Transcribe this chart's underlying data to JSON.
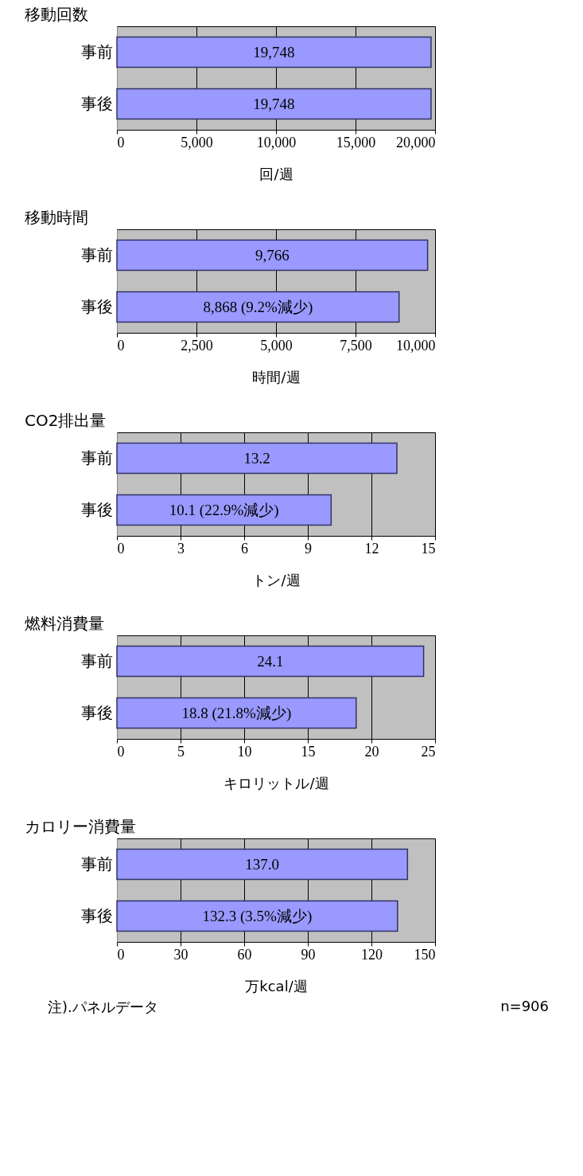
{
  "chart_data": [
    {
      "type": "bar",
      "orientation": "horizontal",
      "title": "移動回数",
      "categories": [
        "事前",
        "事後"
      ],
      "values": [
        19748,
        19748
      ],
      "value_labels": [
        "19,748",
        "19,748"
      ],
      "color": "#9999ff",
      "xlim": [
        0,
        20000
      ],
      "xticks": [
        0,
        {
          "value": 5000,
          "label": "5,000"
        },
        {
          "value": 10000,
          "label": "10,000"
        },
        {
          "value": 15000,
          "label": "15,000"
        },
        {
          "value": 20000,
          "label": "20,000"
        }
      ],
      "xlabel": "回/週",
      "grid": "x"
    },
    {
      "type": "bar",
      "orientation": "horizontal",
      "title": "移動時間",
      "categories": [
        "事前",
        "事後"
      ],
      "values": [
        9766,
        8868
      ],
      "value_labels": [
        "9,766",
        "8,868 (9.2%減少)"
      ],
      "color": "#9999ff",
      "xlim": [
        0,
        10000
      ],
      "xticks": [
        0,
        {
          "value": 2500,
          "label": "2,500"
        },
        {
          "value": 5000,
          "label": "5,000"
        },
        {
          "value": 7500,
          "label": "7,500"
        },
        {
          "value": 10000,
          "label": "10,000"
        }
      ],
      "xlabel": "時間/週",
      "grid": "x"
    },
    {
      "type": "bar",
      "orientation": "horizontal",
      "title": "CO2排出量",
      "categories": [
        "事前",
        "事後"
      ],
      "values": [
        13.2,
        10.1
      ],
      "value_labels": [
        "13.2",
        "10.1 (22.9%減少)"
      ],
      "color": "#9999ff",
      "xlim": [
        0,
        15
      ],
      "xticks": [
        0,
        3,
        6,
        9,
        12,
        15
      ],
      "xlabel": "トン/週",
      "grid": "x"
    },
    {
      "type": "bar",
      "orientation": "horizontal",
      "title": "燃料消費量",
      "categories": [
        "事前",
        "事後"
      ],
      "values": [
        24.1,
        18.8
      ],
      "value_labels": [
        "24.1",
        "18.8 (21.8%減少)"
      ],
      "color": "#9999ff",
      "xlim": [
        0,
        25
      ],
      "xticks": [
        0,
        5,
        10,
        15,
        20,
        25
      ],
      "xlabel": "キロリットル/週",
      "grid": "x"
    },
    {
      "type": "bar",
      "orientation": "horizontal",
      "title": "カロリー消費量",
      "categories": [
        "事前",
        "事後"
      ],
      "values": [
        137.0,
        132.3
      ],
      "value_labels": [
        "137.0",
        "132.3 (3.5%減少)"
      ],
      "color": "#9999ff",
      "xlim": [
        0,
        150
      ],
      "xticks": [
        0,
        30,
        60,
        90,
        120,
        150
      ],
      "xlabel": "万kcal/週",
      "grid": "x",
      "annotations": [
        "注).パネルデータ",
        "n=906"
      ]
    }
  ]
}
